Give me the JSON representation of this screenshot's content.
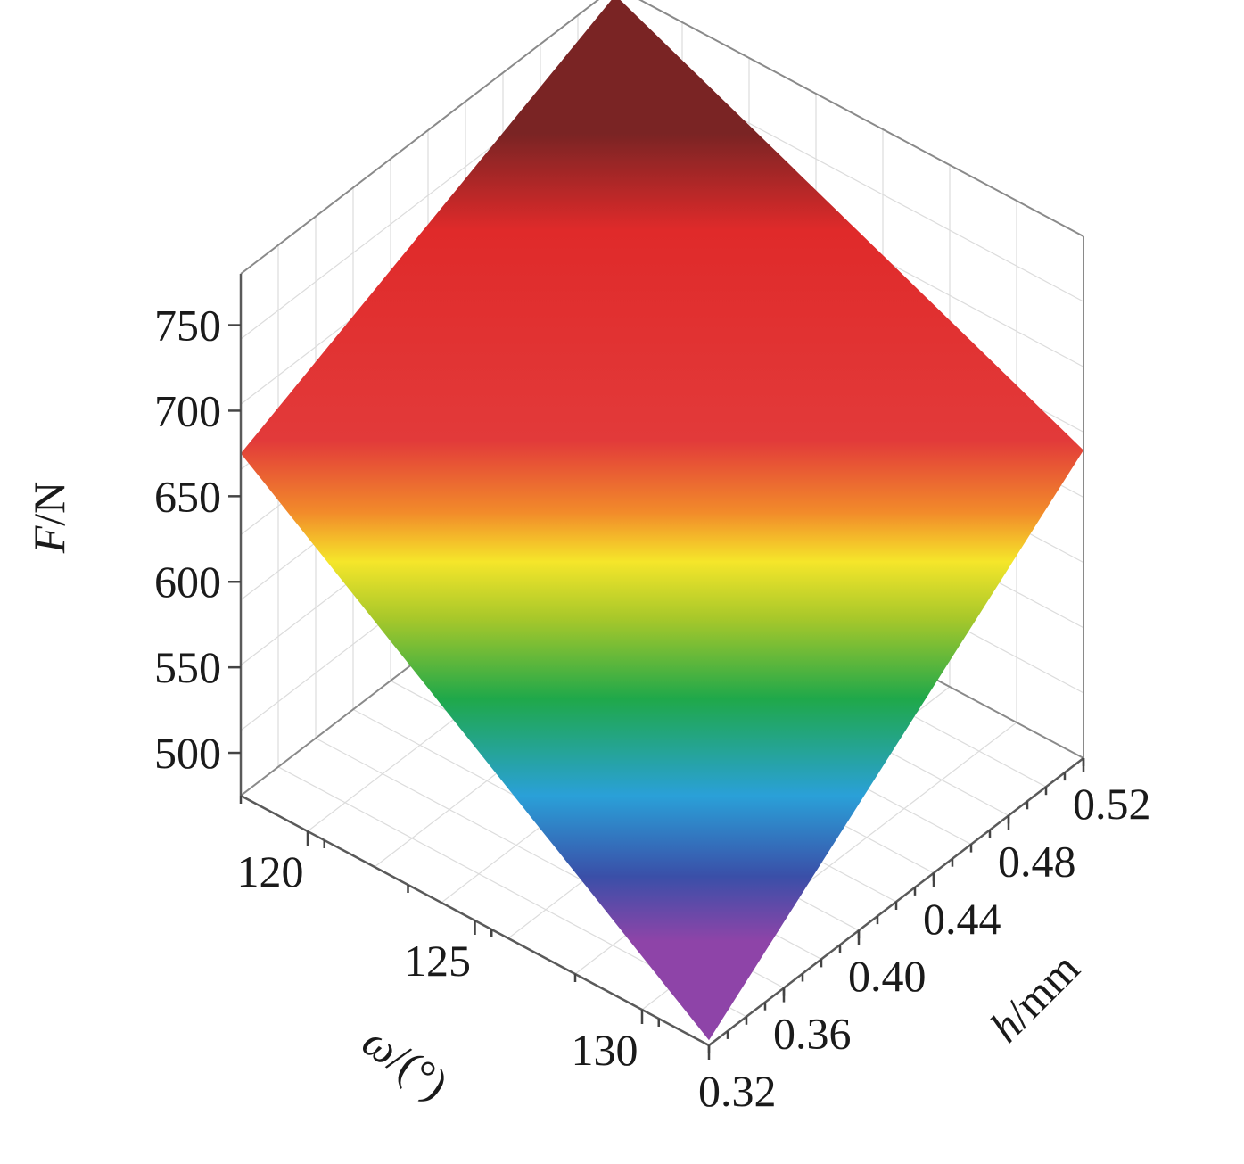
{
  "chart_data": {
    "type": "surface",
    "x_axis": {
      "var": "ω",
      "unit": "/(°)",
      "ticks": [
        "120",
        "125",
        "130"
      ],
      "range": [
        118,
        132
      ]
    },
    "y_axis": {
      "var": "h",
      "unit": "/mm",
      "ticks": [
        "0.32",
        "0.36",
        "0.40",
        "0.44",
        "0.48",
        "0.52"
      ],
      "range": [
        0.32,
        0.52
      ]
    },
    "z_axis": {
      "var": "F",
      "unit": "/N",
      "ticks": [
        "500",
        "550",
        "600",
        "650",
        "700",
        "750"
      ],
      "range": [
        475,
        780
      ]
    },
    "corner_values": [
      {
        "omega": 118,
        "h": 0.52,
        "F": 775
      },
      {
        "omega": 118,
        "h": 0.32,
        "F": 675
      },
      {
        "omega": 132,
        "h": 0.52,
        "F": 655
      },
      {
        "omega": 132,
        "h": 0.32,
        "F": 478
      }
    ],
    "colormap": [
      "#8e44a8",
      "#3a4fa8",
      "#2aa0d8",
      "#1fa84a",
      "#a8c82a",
      "#f5e62a",
      "#f28c2a",
      "#e23a3a",
      "#e02a2a",
      "#7a2424"
    ],
    "grid": true
  }
}
